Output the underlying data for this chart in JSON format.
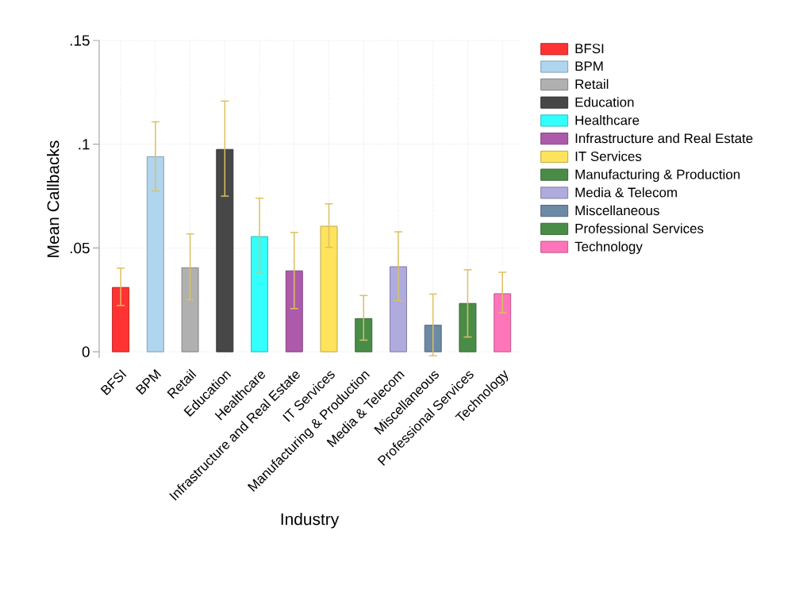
{
  "chart_data": {
    "type": "bar",
    "xlabel": "Industry",
    "ylabel": "Mean Callbacks",
    "categories": [
      "BFSI",
      "BPM",
      "Retail",
      "Education",
      "Healthcare",
      "Infrastructure and Real Estate",
      "IT Services",
      "Manufacturing & Production",
      "Media & Telecom",
      "Miscellaneous",
      "Professional Services",
      "Technology"
    ],
    "series": [
      {
        "name": "BFSI",
        "color": "#ff3333",
        "values": [
          0.031,
          null,
          null,
          null,
          null,
          null,
          null,
          null,
          null,
          null,
          null,
          null
        ],
        "errors": [
          [
            0.0223,
            0.0403
          ],
          null,
          null,
          null,
          null,
          null,
          null,
          null,
          null,
          null,
          null,
          null
        ]
      },
      {
        "name": "BPM",
        "color": "#afd5ef",
        "values": [
          null,
          0.094,
          null,
          null,
          null,
          null,
          null,
          null,
          null,
          null,
          null,
          null
        ],
        "errors": [
          null,
          [
            0.0775,
            0.1108
          ],
          null,
          null,
          null,
          null,
          null,
          null,
          null,
          null,
          null,
          null
        ]
      },
      {
        "name": "Retail",
        "color": "#b0b0b0",
        "values": [
          null,
          null,
          0.0405,
          null,
          null,
          null,
          null,
          null,
          null,
          null,
          null,
          null
        ],
        "errors": [
          null,
          null,
          [
            0.0251,
            0.0568
          ],
          null,
          null,
          null,
          null,
          null,
          null,
          null,
          null,
          null
        ]
      },
      {
        "name": "Education",
        "color": "#474747",
        "values": [
          null,
          null,
          null,
          0.0975,
          null,
          null,
          null,
          null,
          null,
          null,
          null,
          null
        ],
        "errors": [
          null,
          null,
          null,
          [
            0.075,
            0.1208
          ],
          null,
          null,
          null,
          null,
          null,
          null,
          null,
          null
        ]
      },
      {
        "name": "Healthcare",
        "color": "#33ffff",
        "values": [
          null,
          null,
          null,
          null,
          0.0555,
          null,
          null,
          null,
          null,
          null,
          null,
          null
        ],
        "errors": [
          null,
          null,
          null,
          null,
          [
            0.0378,
            0.074
          ],
          null,
          null,
          null,
          null,
          null,
          null,
          null
        ]
      },
      {
        "name": "Infrastructure and Real Estate",
        "color": "#ad5aab",
        "values": [
          null,
          null,
          null,
          null,
          null,
          0.039,
          null,
          null,
          null,
          null,
          null,
          null
        ],
        "errors": [
          null,
          null,
          null,
          null,
          null,
          [
            0.0208,
            0.0575
          ],
          null,
          null,
          null,
          null,
          null,
          null
        ]
      },
      {
        "name": "IT Services",
        "color": "#ffe35c",
        "values": [
          null,
          null,
          null,
          null,
          null,
          null,
          0.0605,
          null,
          null,
          null,
          null,
          null
        ],
        "errors": [
          null,
          null,
          null,
          null,
          null,
          null,
          [
            0.0503,
            0.0713
          ],
          null,
          null,
          null,
          null,
          null
        ]
      },
      {
        "name": "Manufacturing & Production",
        "color": "#498c48",
        "values": [
          null,
          null,
          null,
          null,
          null,
          null,
          null,
          0.016,
          null,
          null,
          null,
          null
        ],
        "errors": [
          null,
          null,
          null,
          null,
          null,
          null,
          null,
          [
            0.0056,
            0.0271
          ],
          null,
          null,
          null,
          null
        ]
      },
      {
        "name": "Media & Telecom",
        "color": "#afabdd",
        "values": [
          null,
          null,
          null,
          null,
          null,
          null,
          null,
          null,
          0.041,
          null,
          null,
          null
        ],
        "errors": [
          null,
          null,
          null,
          null,
          null,
          null,
          null,
          null,
          [
            0.0246,
            0.0578
          ],
          null,
          null,
          null
        ]
      },
      {
        "name": "Miscellaneous",
        "color": "#6c89a5",
        "values": [
          null,
          null,
          null,
          null,
          null,
          null,
          null,
          null,
          null,
          0.0128,
          null,
          null
        ],
        "errors": [
          null,
          null,
          null,
          null,
          null,
          null,
          null,
          null,
          null,
          [
            -0.0019,
            0.0278
          ],
          null,
          null
        ]
      },
      {
        "name": "Professional Services",
        "color": "#498c48",
        "values": [
          null,
          null,
          null,
          null,
          null,
          null,
          null,
          null,
          null,
          null,
          0.0233,
          null
        ],
        "errors": [
          null,
          null,
          null,
          null,
          null,
          null,
          null,
          null,
          null,
          null,
          [
            0.0071,
            0.0395
          ],
          null
        ]
      },
      {
        "name": "Technology",
        "color": "#ff75ba",
        "values": [
          null,
          null,
          null,
          null,
          null,
          null,
          null,
          null,
          null,
          null,
          null,
          0.028
        ],
        "errors": [
          null,
          null,
          null,
          null,
          null,
          null,
          null,
          null,
          null,
          null,
          null,
          [
            0.0188,
            0.0383
          ]
        ]
      }
    ],
    "ylim": [
      -0.003,
      0.15
    ],
    "yticks": [
      {
        "value": 0,
        "label": "0"
      },
      {
        "value": 0.05,
        "label": ".05"
      },
      {
        "value": 0.1,
        "label": ".1"
      },
      {
        "value": 0.15,
        "label": ".15"
      }
    ],
    "grid": true,
    "legend": "right"
  }
}
